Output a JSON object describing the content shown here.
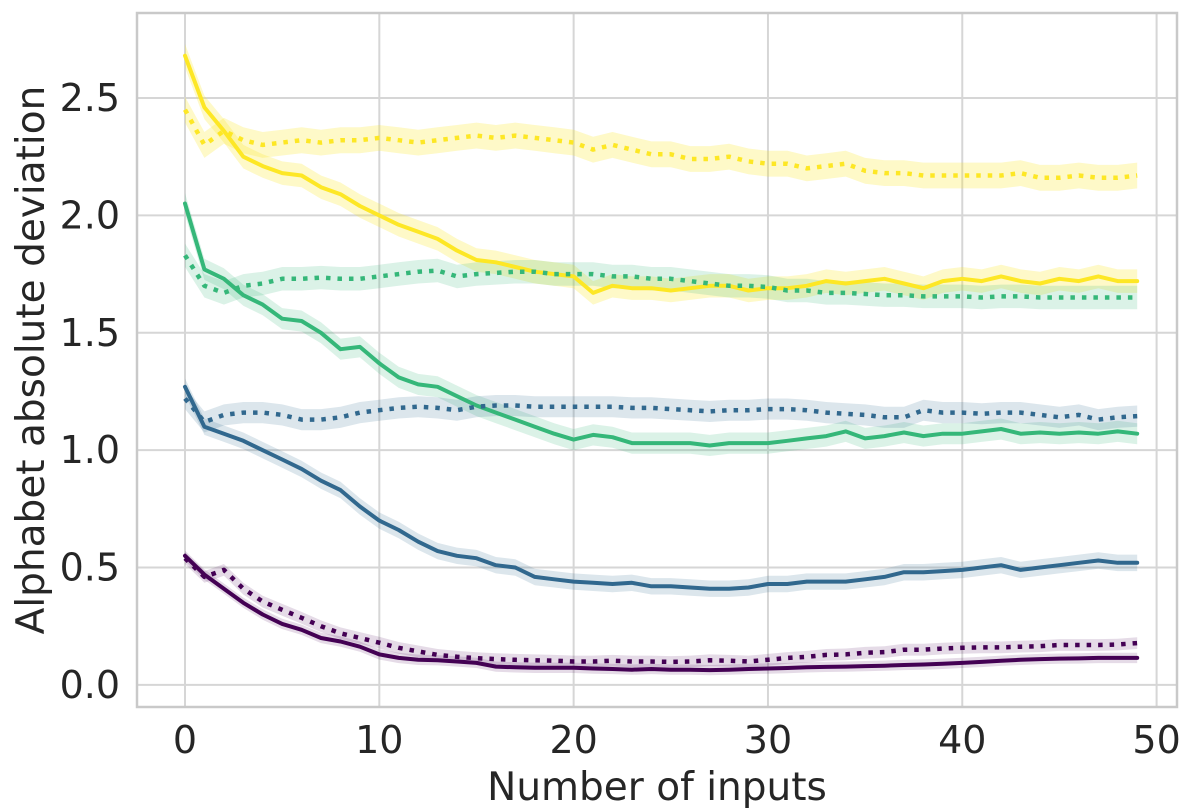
{
  "chart_data": {
    "type": "line",
    "title": "",
    "xlabel": "Number of inputs",
    "ylabel": "Alphabet absolute deviation",
    "grid": true,
    "legend": "none",
    "axes": {
      "xmin": -2.47,
      "xmax": 51.05,
      "ymin": -0.094,
      "ymax": 2.862
    },
    "xticks": {
      "values": [
        0,
        10,
        20,
        30,
        40,
        50
      ],
      "labels": [
        "0",
        "10",
        "20",
        "30",
        "40",
        "50"
      ]
    },
    "yticks": {
      "values": [
        0.0,
        0.5,
        1.0,
        1.5,
        2.0,
        2.5
      ],
      "labels": [
        "0.0",
        "0.5",
        "1.0",
        "1.5",
        "2.0",
        "2.5"
      ]
    },
    "x": [
      0,
      1,
      2,
      3,
      4,
      5,
      6,
      7,
      8,
      9,
      10,
      11,
      12,
      13,
      14,
      15,
      16,
      17,
      18,
      19,
      20,
      21,
      22,
      23,
      24,
      25,
      26,
      27,
      28,
      29,
      30,
      31,
      32,
      33,
      34,
      35,
      36,
      37,
      38,
      39,
      40,
      41,
      42,
      43,
      44,
      45,
      46,
      47,
      48,
      49
    ],
    "series": [
      {
        "name": "yellow-solid",
        "color": "#FDE725",
        "line_style": "solid",
        "band": 0.05,
        "band_opacity": 0.25,
        "values": [
          2.68,
          2.46,
          2.36,
          2.25,
          2.21,
          2.18,
          2.17,
          2.12,
          2.09,
          2.04,
          2.0,
          1.96,
          1.93,
          1.9,
          1.85,
          1.81,
          1.8,
          1.78,
          1.76,
          1.75,
          1.74,
          1.67,
          1.7,
          1.69,
          1.69,
          1.68,
          1.69,
          1.7,
          1.7,
          1.68,
          1.69,
          1.69,
          1.7,
          1.72,
          1.71,
          1.72,
          1.73,
          1.71,
          1.69,
          1.72,
          1.73,
          1.72,
          1.74,
          1.72,
          1.71,
          1.73,
          1.72,
          1.74,
          1.72,
          1.72
        ]
      },
      {
        "name": "yellow-dotted",
        "color": "#FDE725",
        "line_style": "dotted",
        "band": 0.055,
        "band_opacity": 0.25,
        "values": [
          2.45,
          2.3,
          2.36,
          2.32,
          2.3,
          2.31,
          2.32,
          2.31,
          2.32,
          2.32,
          2.33,
          2.32,
          2.31,
          2.32,
          2.33,
          2.34,
          2.33,
          2.34,
          2.33,
          2.32,
          2.31,
          2.28,
          2.3,
          2.28,
          2.26,
          2.26,
          2.24,
          2.24,
          2.25,
          2.23,
          2.22,
          2.22,
          2.2,
          2.21,
          2.22,
          2.19,
          2.18,
          2.18,
          2.17,
          2.17,
          2.17,
          2.17,
          2.17,
          2.18,
          2.16,
          2.16,
          2.17,
          2.16,
          2.16,
          2.17
        ]
      },
      {
        "name": "green-solid",
        "color": "#35B779",
        "line_style": "solid",
        "band": 0.045,
        "band_opacity": 0.18,
        "values": [
          2.05,
          1.77,
          1.73,
          1.66,
          1.62,
          1.56,
          1.55,
          1.5,
          1.43,
          1.44,
          1.37,
          1.31,
          1.28,
          1.27,
          1.23,
          1.19,
          1.16,
          1.13,
          1.1,
          1.07,
          1.045,
          1.065,
          1.055,
          1.03,
          1.03,
          1.03,
          1.03,
          1.02,
          1.03,
          1.03,
          1.03,
          1.04,
          1.05,
          1.06,
          1.08,
          1.05,
          1.06,
          1.075,
          1.06,
          1.07,
          1.07,
          1.08,
          1.09,
          1.07,
          1.075,
          1.07,
          1.075,
          1.07,
          1.08,
          1.07
        ]
      },
      {
        "name": "green-dotted",
        "color": "#35B779",
        "line_style": "dotted",
        "band": 0.05,
        "band_opacity": 0.18,
        "values": [
          1.83,
          1.7,
          1.67,
          1.7,
          1.71,
          1.73,
          1.73,
          1.735,
          1.73,
          1.73,
          1.74,
          1.75,
          1.76,
          1.765,
          1.74,
          1.75,
          1.755,
          1.76,
          1.76,
          1.75,
          1.75,
          1.75,
          1.74,
          1.74,
          1.73,
          1.73,
          1.72,
          1.71,
          1.7,
          1.7,
          1.695,
          1.68,
          1.68,
          1.67,
          1.67,
          1.665,
          1.66,
          1.66,
          1.655,
          1.655,
          1.655,
          1.65,
          1.655,
          1.655,
          1.65,
          1.65,
          1.65,
          1.65,
          1.65,
          1.65
        ]
      },
      {
        "name": "blue-solid",
        "color": "#31688E",
        "line_style": "solid",
        "band": 0.035,
        "band_opacity": 0.17,
        "values": [
          1.27,
          1.1,
          1.07,
          1.04,
          1.0,
          0.96,
          0.92,
          0.87,
          0.83,
          0.76,
          0.7,
          0.66,
          0.61,
          0.57,
          0.55,
          0.54,
          0.51,
          0.5,
          0.46,
          0.45,
          0.44,
          0.435,
          0.43,
          0.435,
          0.42,
          0.42,
          0.415,
          0.41,
          0.41,
          0.415,
          0.43,
          0.43,
          0.44,
          0.44,
          0.44,
          0.45,
          0.46,
          0.48,
          0.48,
          0.485,
          0.49,
          0.5,
          0.51,
          0.49,
          0.5,
          0.51,
          0.52,
          0.53,
          0.52,
          0.52
        ]
      },
      {
        "name": "blue-dotted",
        "color": "#31688E",
        "line_style": "dotted",
        "band": 0.045,
        "band_opacity": 0.17,
        "values": [
          1.22,
          1.12,
          1.15,
          1.16,
          1.16,
          1.15,
          1.13,
          1.13,
          1.14,
          1.16,
          1.17,
          1.18,
          1.185,
          1.18,
          1.17,
          1.185,
          1.19,
          1.19,
          1.185,
          1.185,
          1.185,
          1.185,
          1.185,
          1.18,
          1.18,
          1.175,
          1.17,
          1.165,
          1.17,
          1.17,
          1.175,
          1.175,
          1.17,
          1.16,
          1.155,
          1.15,
          1.14,
          1.14,
          1.17,
          1.16,
          1.16,
          1.155,
          1.16,
          1.16,
          1.15,
          1.14,
          1.15,
          1.13,
          1.14,
          1.145
        ]
      },
      {
        "name": "purple-solid",
        "color": "#440154",
        "line_style": "solid",
        "band": 0.022,
        "band_opacity": 0.14,
        "values": [
          0.55,
          0.47,
          0.41,
          0.35,
          0.3,
          0.26,
          0.235,
          0.2,
          0.185,
          0.163,
          0.13,
          0.115,
          0.107,
          0.105,
          0.1,
          0.094,
          0.078,
          0.075,
          0.073,
          0.073,
          0.073,
          0.07,
          0.068,
          0.065,
          0.068,
          0.065,
          0.065,
          0.063,
          0.065,
          0.068,
          0.07,
          0.072,
          0.075,
          0.077,
          0.078,
          0.08,
          0.082,
          0.085,
          0.087,
          0.09,
          0.094,
          0.098,
          0.103,
          0.107,
          0.11,
          0.112,
          0.113,
          0.115,
          0.115,
          0.115
        ]
      },
      {
        "name": "purple-dotted",
        "color": "#440154",
        "line_style": "dotted",
        "band": 0.025,
        "band_opacity": 0.14,
        "values": [
          0.54,
          0.46,
          0.49,
          0.41,
          0.355,
          0.32,
          0.286,
          0.25,
          0.22,
          0.2,
          0.18,
          0.158,
          0.143,
          0.128,
          0.12,
          0.114,
          0.11,
          0.107,
          0.105,
          0.103,
          0.1,
          0.1,
          0.103,
          0.1,
          0.1,
          0.098,
          0.1,
          0.105,
          0.103,
          0.1,
          0.107,
          0.115,
          0.12,
          0.128,
          0.13,
          0.137,
          0.14,
          0.15,
          0.15,
          0.155,
          0.158,
          0.16,
          0.16,
          0.163,
          0.165,
          0.17,
          0.17,
          0.17,
          0.172,
          0.178
        ]
      }
    ]
  },
  "styles": {
    "background": "#ffffff",
    "grid_color": "#d6d6d6",
    "spine_color": "#c9c9c9",
    "text_color": "#262626"
  }
}
